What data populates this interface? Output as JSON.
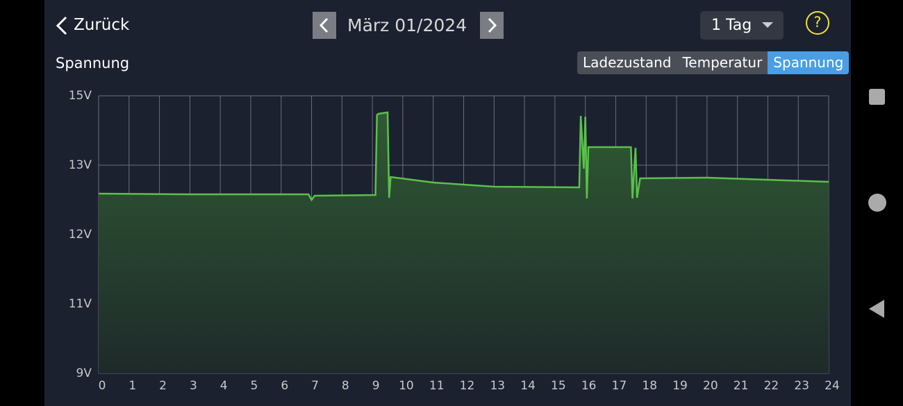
{
  "header": {
    "back": "Zurück",
    "date": "März 01/2024",
    "range": "1 Tag",
    "help": "?"
  },
  "tabs": [
    "Ladezustand",
    "Temperatur",
    "Spannung"
  ],
  "active_tab": 2,
  "chart_data": {
    "type": "area",
    "title": "Spannung",
    "color": "#5cc04c",
    "grid": true,
    "x": [
      0,
      3,
      6.9,
      7.0,
      7.1,
      9.1,
      9.15,
      9.2,
      9.5,
      9.55,
      9.6,
      11,
      13,
      15.8,
      15.85,
      15.95,
      16.0,
      16.05,
      16.1,
      17.5,
      17.55,
      17.65,
      17.7,
      17.8,
      20,
      24
    ],
    "values": [
      12.59,
      12.58,
      12.58,
      12.5,
      12.56,
      12.57,
      14.45,
      14.48,
      14.52,
      12.53,
      12.83,
      12.75,
      12.69,
      12.68,
      14.42,
      12.95,
      14.4,
      12.52,
      13.52,
      13.52,
      12.52,
      13.5,
      12.53,
      12.81,
      12.82,
      12.76
    ],
    "xlim": [
      0,
      24
    ],
    "xticks": [
      0,
      1,
      2,
      3,
      4,
      5,
      6,
      7,
      8,
      9,
      10,
      11,
      12,
      13,
      14,
      15,
      16,
      17,
      18,
      19,
      20,
      21,
      22,
      23,
      24
    ],
    "ylim": [
      9,
      15
    ],
    "yticks": [
      {
        "value": 9,
        "label": "9V"
      },
      {
        "value": 11,
        "label": "11V"
      },
      {
        "value": 12,
        "label": "12V"
      },
      {
        "value": 13,
        "label": "13V"
      },
      {
        "value": 15,
        "label": "15V"
      }
    ]
  }
}
